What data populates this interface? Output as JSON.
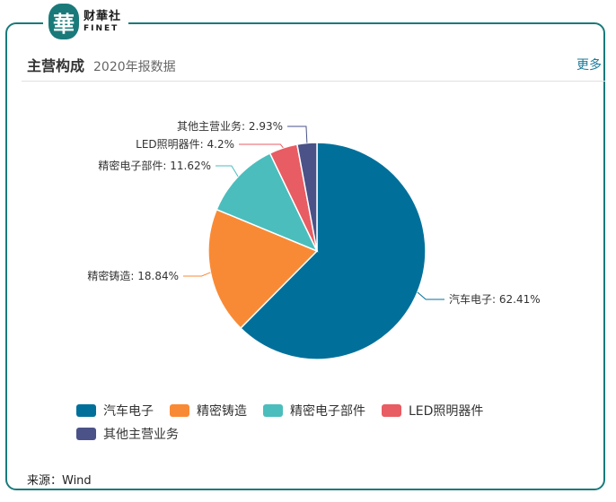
{
  "logo": {
    "mark": "華",
    "cn": "财華社",
    "en": "FINET"
  },
  "header": {
    "title": "主营构成",
    "subtitle": "2020年报数据",
    "more": "更多"
  },
  "chart_data": {
    "type": "pie",
    "categories": [
      "汽车电子",
      "精密铸造",
      "精密电子部件",
      "LED照明器件",
      "其他主营业务"
    ],
    "values": [
      62.41,
      18.84,
      11.62,
      4.2,
      2.93
    ],
    "labels": [
      "汽车电子: 62.41%",
      "精密铸造: 18.84%",
      "精密电子部件: 11.62%",
      "LED照明器件: 4.2%",
      "其他主营业务: 2.93%"
    ],
    "colors": [
      "#00709a",
      "#f98a35",
      "#4bbdbd",
      "#e85c63",
      "#4a5288"
    ],
    "legend_position": "bottom"
  },
  "source": "来源：Wind"
}
